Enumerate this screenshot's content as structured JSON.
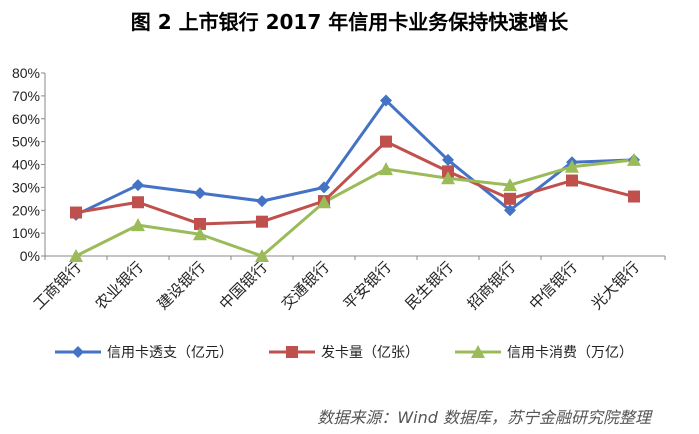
{
  "chart_data": {
    "type": "line",
    "title": "图 2 上市银行 2017 年信用卡业务保持快速增长",
    "categories": [
      "工商银行",
      "农业银行",
      "建设银行",
      "中国银行",
      "交通银行",
      "平安银行",
      "民生银行",
      "招商银行",
      "中信银行",
      "光大银行"
    ],
    "y_ticks": [
      "0%",
      "10%",
      "20%",
      "30%",
      "40%",
      "50%",
      "60%",
      "70%",
      "80%"
    ],
    "ylim": [
      0,
      80
    ],
    "grid": false,
    "legend_position": "bottom",
    "series": [
      {
        "name": "信用卡透支（亿元）",
        "color": "#4472C4",
        "marker": "diamond",
        "values": [
          18,
          31,
          27.5,
          24,
          30,
          68,
          42,
          20,
          41,
          42
        ]
      },
      {
        "name": "发卡量（亿张）",
        "color": "#C0504D",
        "marker": "square",
        "values": [
          19,
          23.5,
          14,
          15,
          24,
          50,
          37,
          25,
          33,
          26
        ]
      },
      {
        "name": "信用卡消费（万亿）",
        "color": "#9BBB59",
        "marker": "triangle",
        "values": [
          0,
          13.5,
          9.5,
          0,
          23.5,
          38,
          34,
          31,
          39,
          42
        ]
      }
    ]
  },
  "source_note": "数据来源：Wind 数据库，苏宁金融研究院整理"
}
